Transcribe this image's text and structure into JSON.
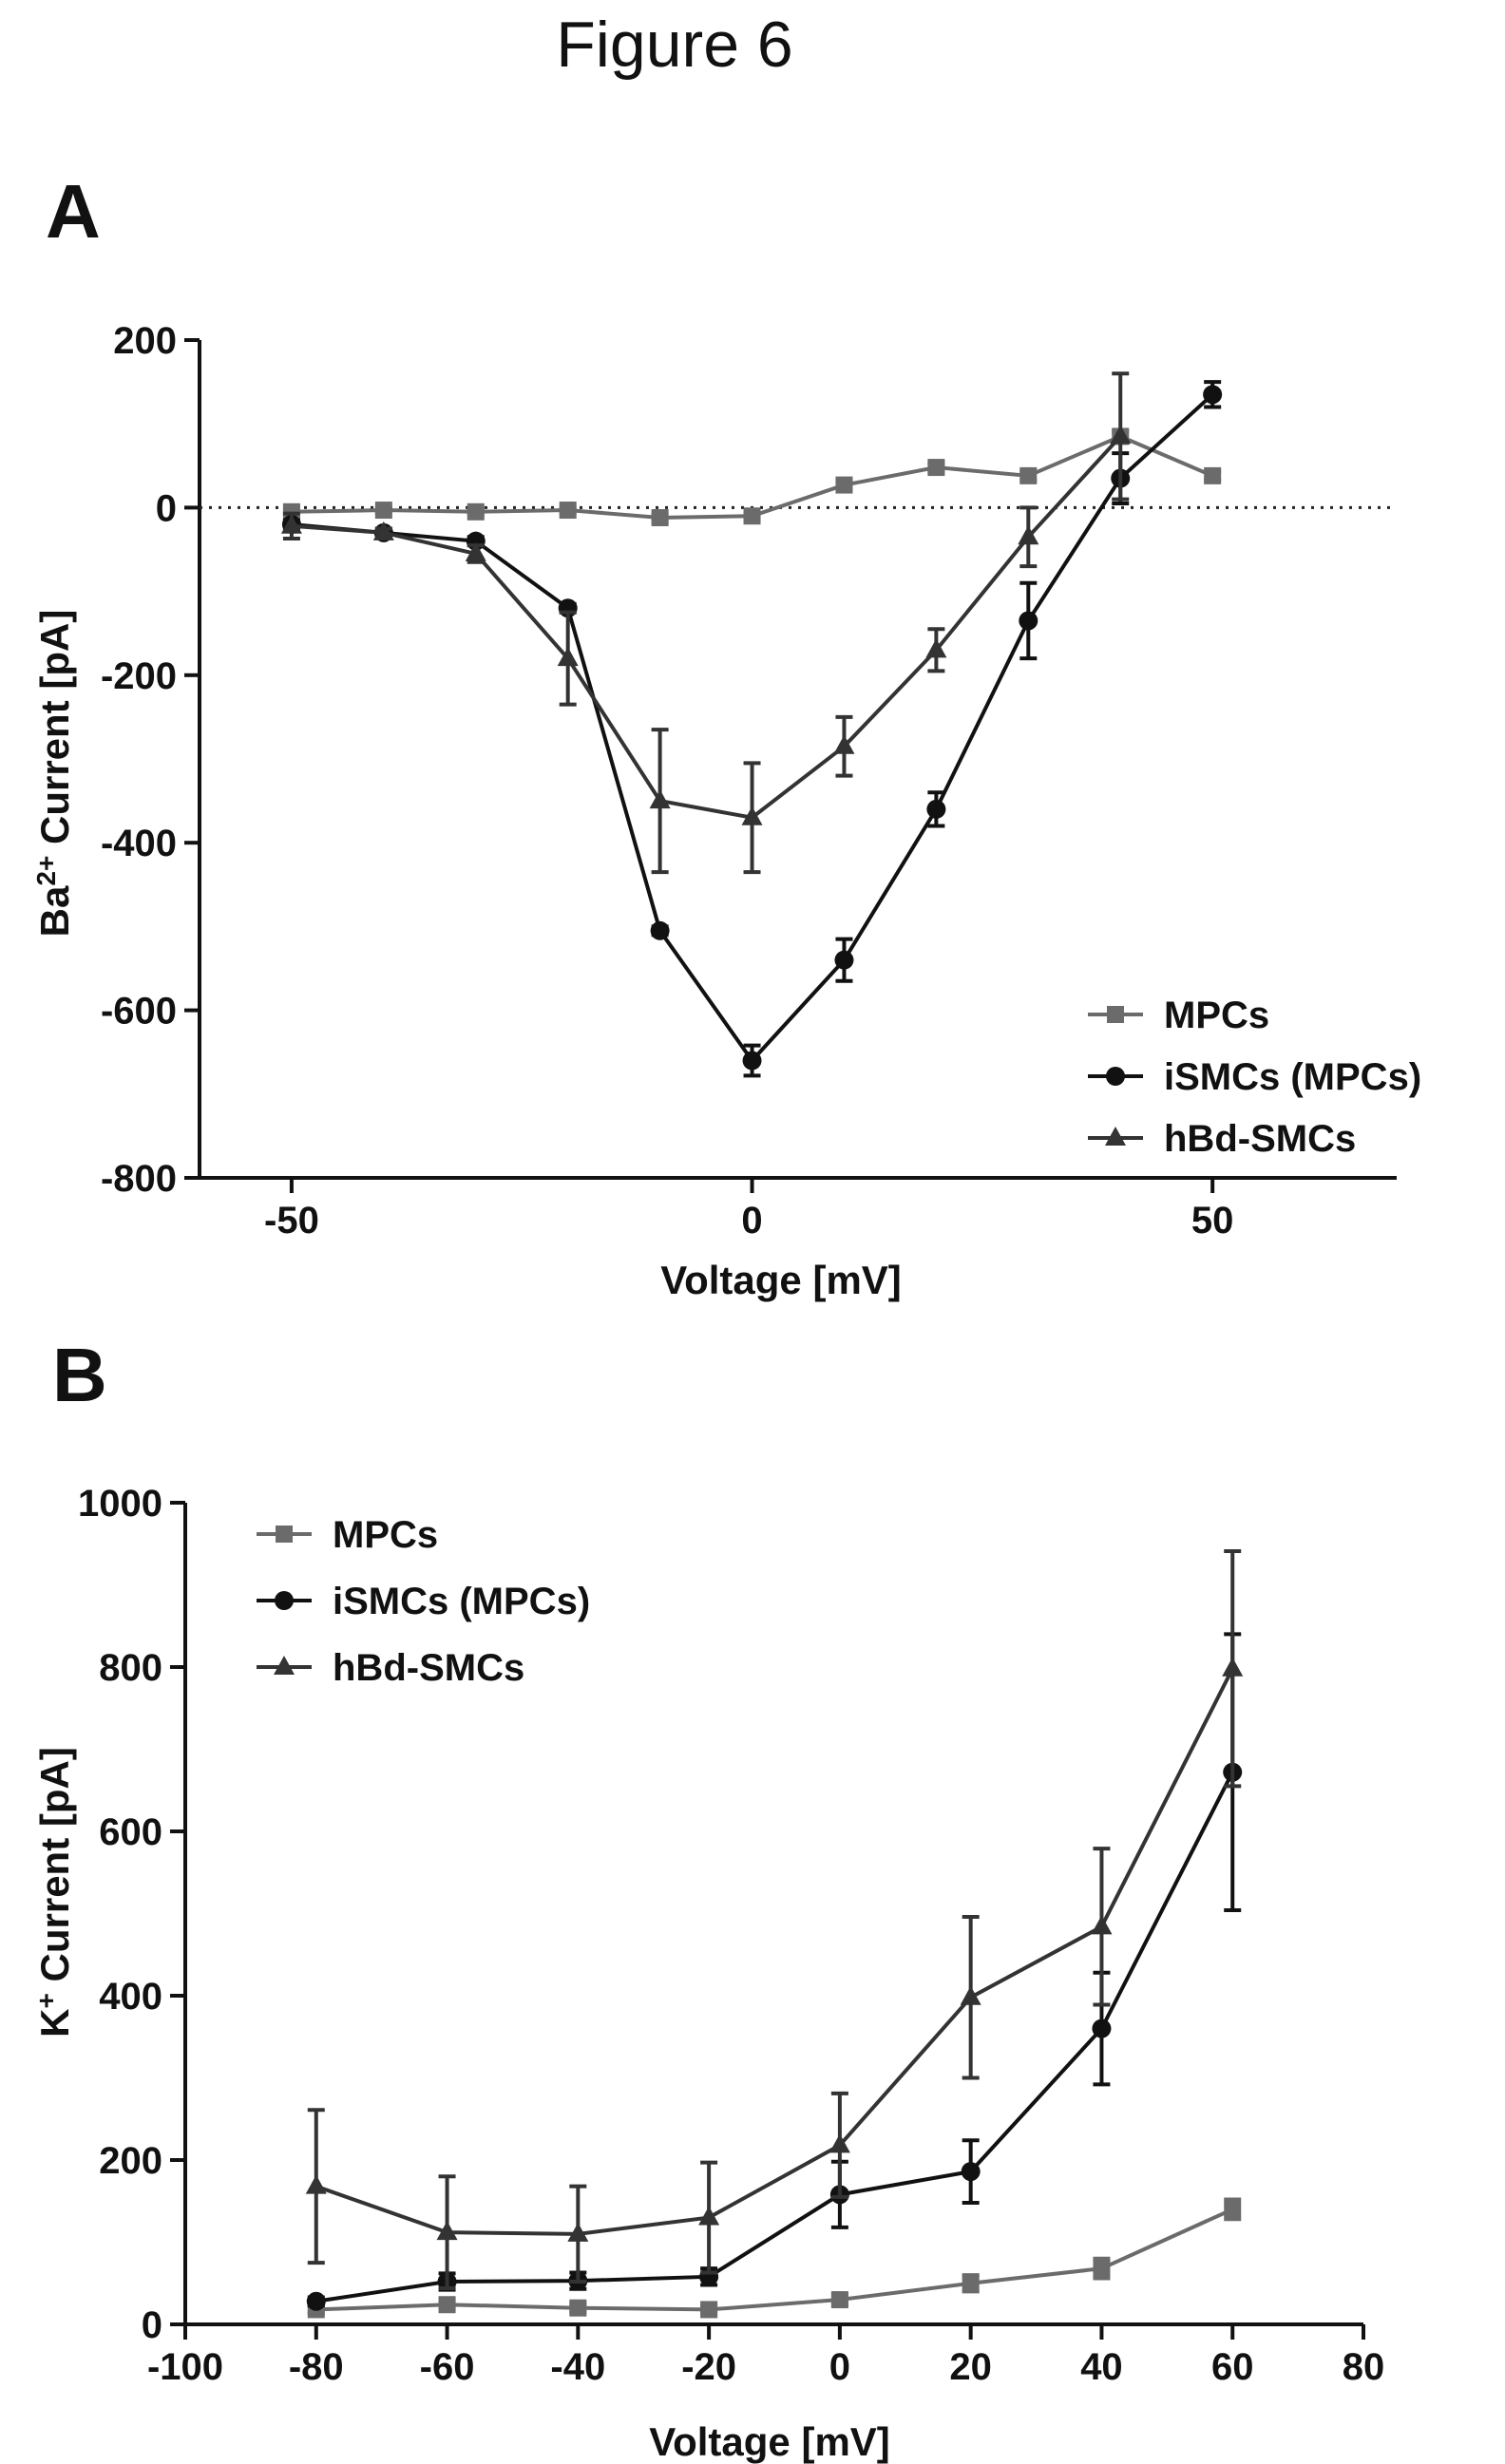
{
  "figure_title": "Figure 6",
  "chart_data": [
    {
      "panel": "A",
      "type": "line",
      "xlabel": "Voltage [mV]",
      "ylabel_parts": [
        "Ba",
        "2+",
        " Current [pA]"
      ],
      "xlim": [
        -60,
        70
      ],
      "ylim": [
        -800,
        200
      ],
      "x_ticks": [
        -50,
        0,
        50
      ],
      "y_ticks": [
        200,
        0,
        -200,
        -400,
        -600,
        -800
      ],
      "zero_reference_line": true,
      "legend_position": "bottom-right",
      "series": [
        {
          "name": "MPCs",
          "marker": "square",
          "color": "#6b6b6b",
          "x": [
            -50,
            -40,
            -30,
            -20,
            -10,
            0,
            10,
            20,
            30,
            40,
            50
          ],
          "y": [
            -5,
            -3,
            -5,
            -3,
            -12,
            -10,
            27,
            48,
            38,
            85,
            38
          ],
          "err": [
            3,
            3,
            3,
            3,
            4,
            4,
            5,
            5,
            5,
            6,
            5
          ]
        },
        {
          "name": "iSMCs (MPCs)",
          "marker": "circle",
          "color": "#111111",
          "x": [
            -50,
            -40,
            -30,
            -20,
            -10,
            0,
            10,
            20,
            30,
            40,
            50
          ],
          "y": [
            -20,
            -30,
            -40,
            -120,
            -505,
            -660,
            -540,
            -360,
            -135,
            35,
            135
          ],
          "err": [
            5,
            5,
            5,
            5,
            5,
            18,
            25,
            20,
            45,
            30,
            15
          ]
        },
        {
          "name": "hBd-SMCs",
          "marker": "triangle",
          "color": "#333333",
          "x": [
            -50,
            -40,
            -30,
            -20,
            -10,
            0,
            10,
            20,
            30,
            40
          ],
          "y": [
            -22,
            -30,
            -55,
            -180,
            -350,
            -370,
            -285,
            -170,
            -35,
            85
          ],
          "err": [
            15,
            5,
            10,
            55,
            85,
            65,
            35,
            25,
            35,
            75
          ]
        }
      ]
    },
    {
      "panel": "B",
      "type": "line",
      "xlabel": "Voltage [mV]",
      "ylabel_parts": [
        "K",
        "+",
        " Current [pA]"
      ],
      "xlim": [
        -100,
        80
      ],
      "ylim": [
        0,
        1000
      ],
      "x_ticks": [
        -100,
        -80,
        -60,
        -40,
        -20,
        0,
        20,
        40,
        60,
        80
      ],
      "y_ticks": [
        0,
        200,
        400,
        600,
        800,
        1000
      ],
      "legend_position": "top-left",
      "series": [
        {
          "name": "MPCs",
          "marker": "square",
          "color": "#6b6b6b",
          "x": [
            -80,
            -60,
            -40,
            -20,
            0,
            20,
            40,
            60
          ],
          "y": [
            18,
            24,
            20,
            18,
            30,
            50,
            68,
            140
          ],
          "err": [
            4,
            5,
            5,
            4,
            6,
            10,
            12,
            12
          ]
        },
        {
          "name": "iSMCs (MPCs)",
          "marker": "circle",
          "color": "#111111",
          "x": [
            -80,
            -60,
            -40,
            -20,
            0,
            20,
            40,
            60
          ],
          "y": [
            28,
            52,
            53,
            58,
            158,
            186,
            360,
            672
          ],
          "err": [
            5,
            10,
            10,
            10,
            40,
            38,
            68,
            168
          ]
        },
        {
          "name": "hBd-SMCs",
          "marker": "triangle",
          "color": "#333333",
          "x": [
            -80,
            -60,
            -40,
            -20,
            0,
            20,
            40,
            60
          ],
          "y": [
            168,
            112,
            110,
            130,
            218,
            398,
            484,
            798
          ],
          "err": [
            93,
            68,
            58,
            67,
            63,
            98,
            95,
            143
          ]
        }
      ]
    }
  ]
}
